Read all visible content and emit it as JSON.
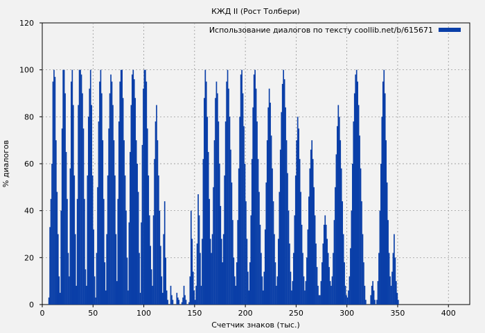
{
  "chart_data": {
    "type": "bar",
    "title": "КЖД II (Рост Толбери)",
    "xlabel": "Счетчик знаков (тыс.)",
    "ylabel": "% диалогов",
    "xlim": [
      0,
      421
    ],
    "ylim": [
      0,
      120
    ],
    "xticks": [
      0,
      50,
      100,
      150,
      200,
      250,
      300,
      350,
      400
    ],
    "yticks": [
      0,
      20,
      40,
      60,
      80,
      100,
      120
    ],
    "grid": true,
    "legend_position": "top-right",
    "series": [
      {
        "name": "Использование диалогов по тексту coollib.net/b/615671",
        "color": "#0a3fa8",
        "x_step": 1,
        "values": [
          0,
          0,
          0,
          0,
          0,
          0,
          3,
          33,
          45,
          60,
          95,
          100,
          97,
          70,
          48,
          30,
          12,
          5,
          40,
          75,
          100,
          100,
          90,
          65,
          45,
          22,
          12,
          58,
          95,
          100,
          85,
          55,
          30,
          8,
          45,
          85,
          100,
          100,
          98,
          90,
          75,
          45,
          15,
          8,
          55,
          80,
          92,
          100,
          85,
          55,
          32,
          12,
          3,
          22,
          50,
          78,
          95,
          100,
          90,
          70,
          45,
          18,
          6,
          30,
          55,
          75,
          90,
          98,
          95,
          85,
          70,
          55,
          30,
          10,
          45,
          78,
          95,
          100,
          100,
          88,
          70,
          55,
          40,
          20,
          6,
          35,
          65,
          85,
          98,
          100,
          96,
          88,
          70,
          60,
          48,
          22,
          5,
          35,
          68,
          92,
          100,
          100,
          95,
          75,
          55,
          38,
          25,
          15,
          8,
          38,
          62,
          78,
          85,
          70,
          55,
          40,
          25,
          12,
          5,
          30,
          44,
          20,
          6,
          2,
          0,
          0,
          8,
          4,
          2,
          0,
          0,
          0,
          5,
          3,
          2,
          0,
          0,
          1,
          3,
          8,
          4,
          2,
          0,
          0,
          1,
          12,
          40,
          28,
          14,
          6,
          2,
          8,
          26,
          47,
          38,
          22,
          8,
          28,
          62,
          88,
          100,
          95,
          80,
          65,
          45,
          28,
          22,
          30,
          50,
          70,
          88,
          95,
          90,
          78,
          60,
          42,
          28,
          18,
          30,
          55,
          78,
          95,
          100,
          92,
          80,
          66,
          52,
          36,
          20,
          12,
          8,
          18,
          36,
          58,
          80,
          98,
          100,
          90,
          76,
          60,
          44,
          28,
          14,
          6,
          18,
          38,
          62,
          84,
          98,
          100,
          92,
          78,
          62,
          48,
          34,
          22,
          12,
          6,
          14,
          32,
          52,
          70,
          84,
          92,
          86,
          72,
          58,
          44,
          30,
          18,
          8,
          12,
          28,
          48,
          66,
          82,
          94,
          100,
          96,
          84,
          70,
          56,
          40,
          26,
          14,
          6,
          10,
          22,
          38,
          55,
          70,
          80,
          75,
          62,
          48,
          34,
          22,
          12,
          6,
          10,
          20,
          32,
          46,
          58,
          66,
          70,
          62,
          50,
          38,
          26,
          16,
          8,
          4,
          4,
          10,
          18,
          26,
          34,
          38,
          34,
          28,
          22,
          16,
          10,
          8,
          12,
          22,
          36,
          50,
          64,
          76,
          85,
          80,
          70,
          58,
          44,
          30,
          18,
          8,
          4,
          3,
          6,
          12,
          24,
          40,
          60,
          78,
          90,
          98,
          100,
          95,
          85,
          72,
          58,
          44,
          30,
          18,
          8,
          2,
          0,
          0,
          0,
          0,
          4,
          8,
          10,
          6,
          2,
          0,
          2,
          10,
          22,
          40,
          60,
          80,
          95,
          100,
          90,
          70,
          52,
          36,
          22,
          12,
          8,
          14,
          22,
          30,
          20,
          10,
          5,
          2,
          0,
          0,
          0,
          0,
          0,
          0,
          0,
          0,
          0,
          0,
          0,
          0,
          0,
          0,
          0,
          0,
          0,
          0,
          0,
          0,
          0,
          0,
          0,
          0,
          0,
          0,
          0,
          0,
          0,
          0,
          0,
          0,
          0,
          0
        ]
      }
    ]
  }
}
